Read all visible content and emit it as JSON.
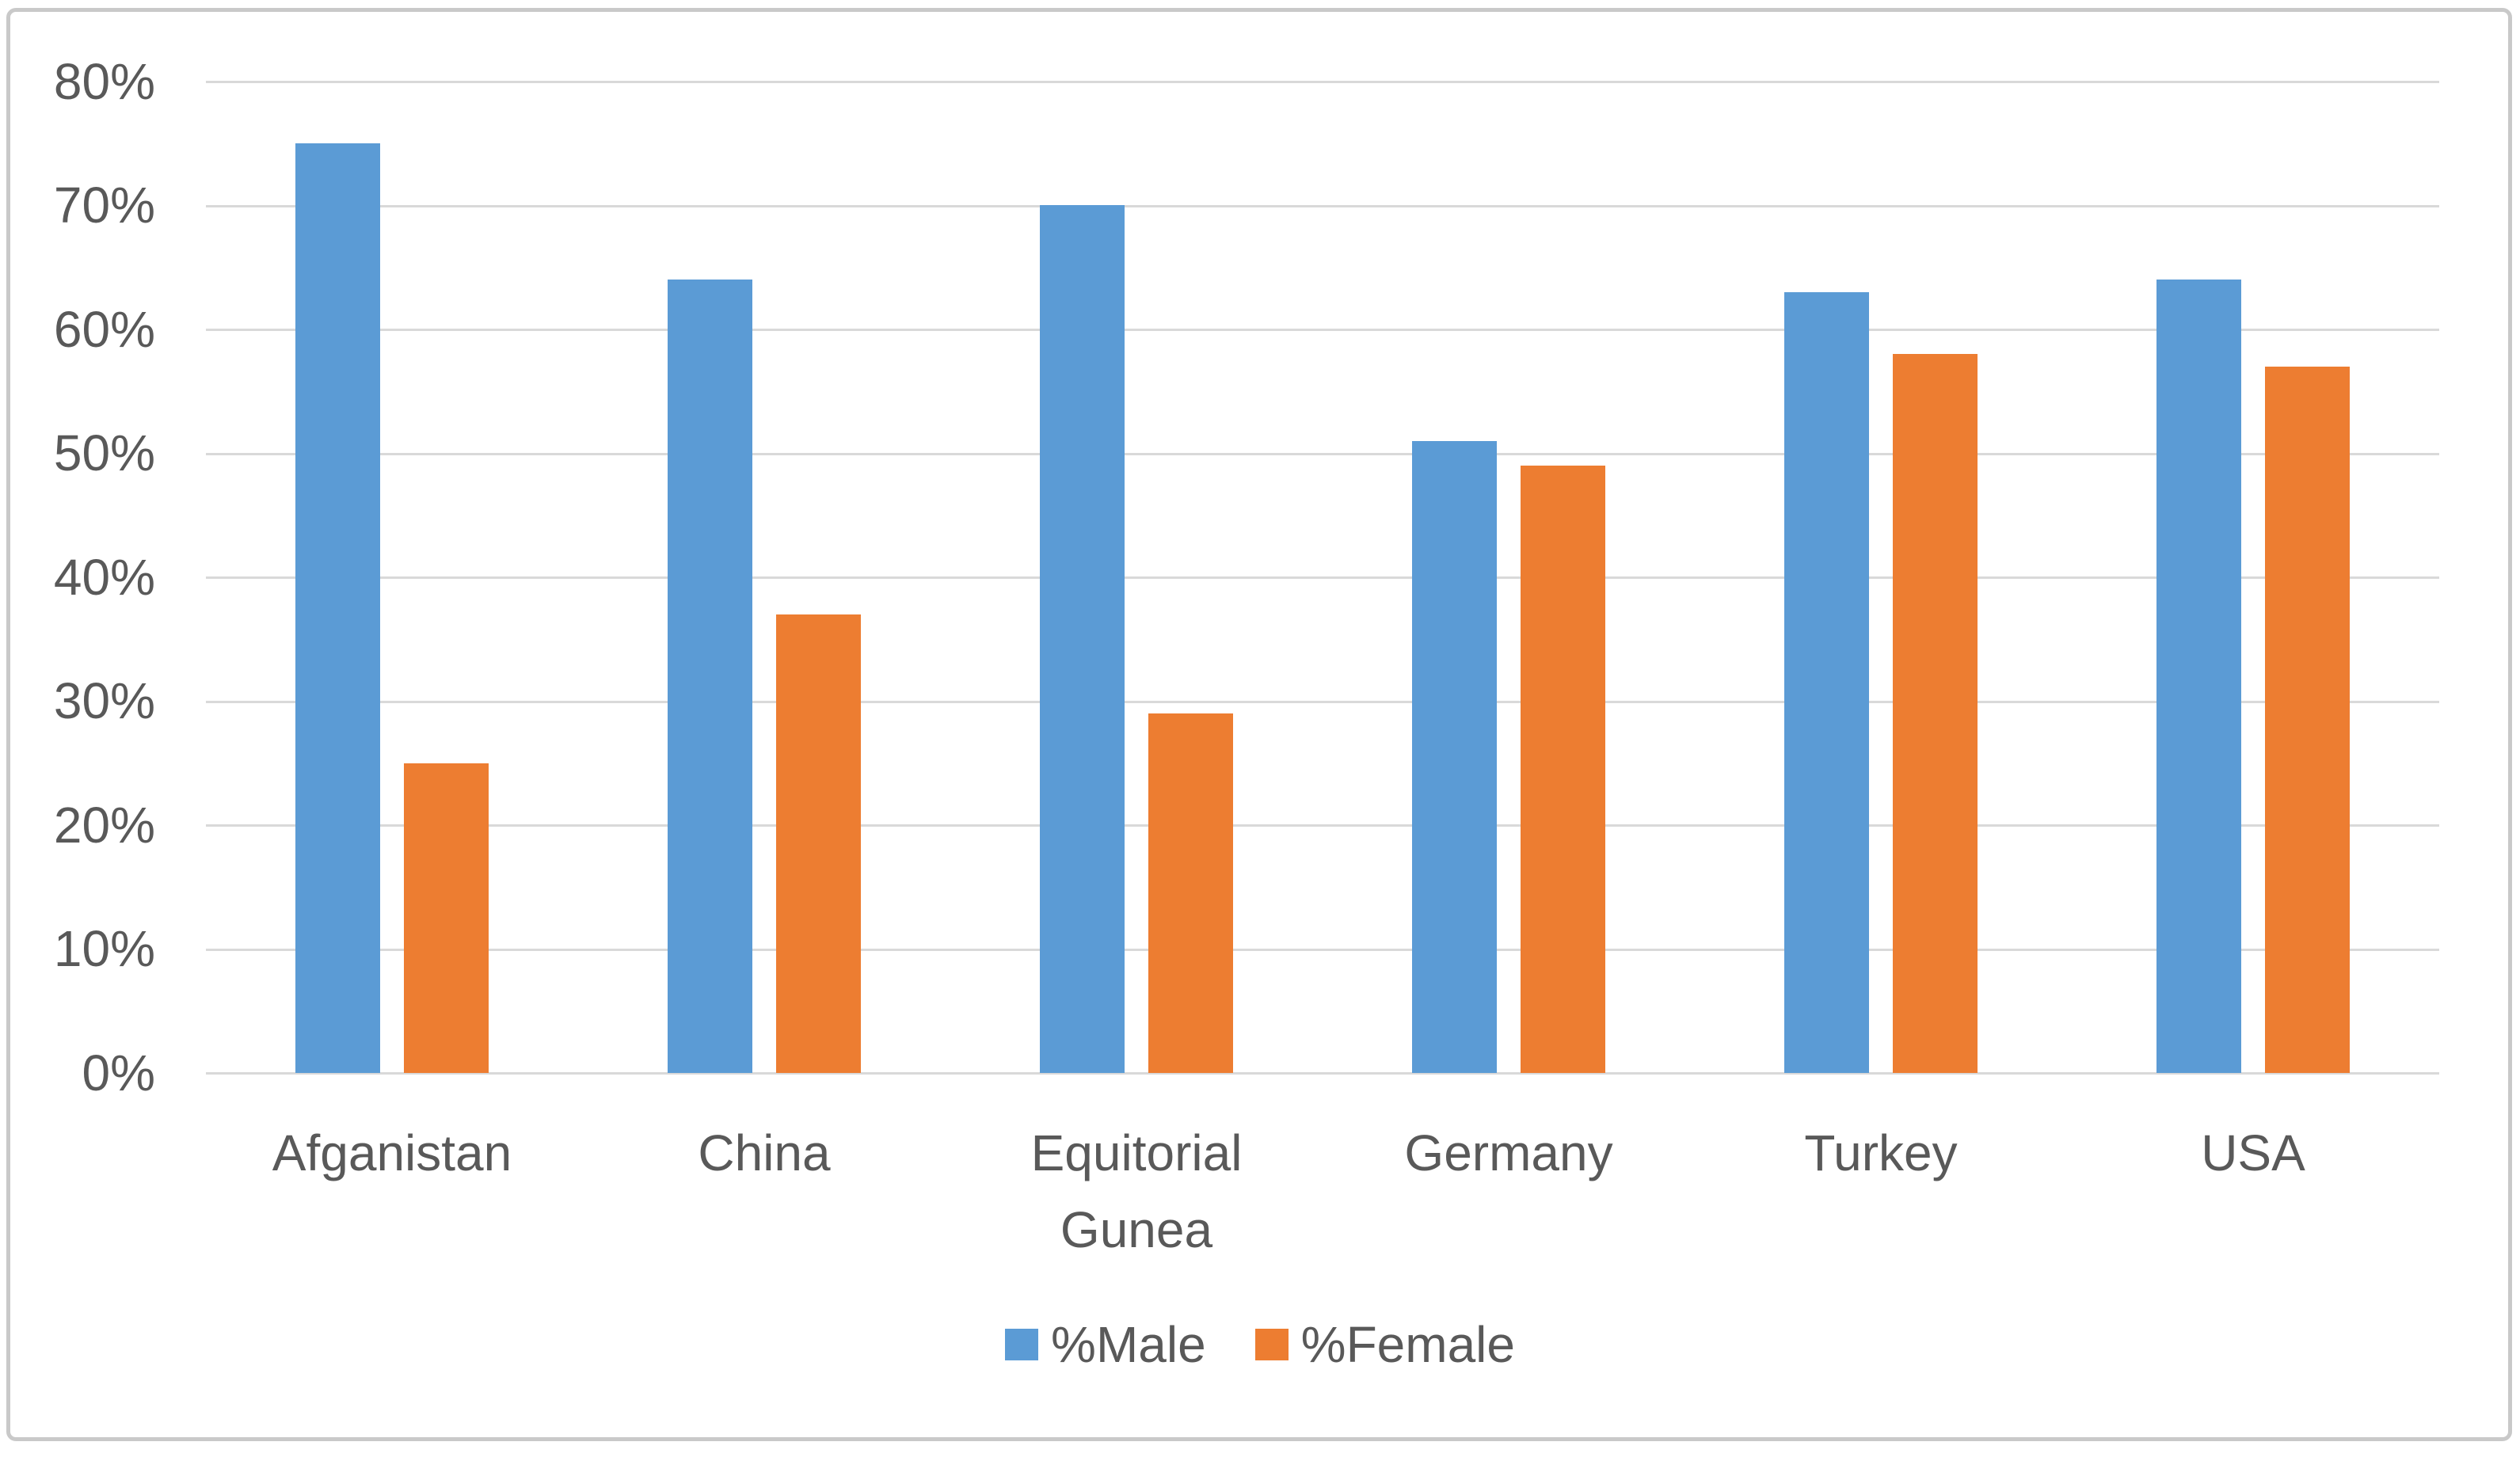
{
  "chart_data": {
    "type": "bar",
    "categories": [
      "Afganistan",
      "China",
      "Equitorial Gunea",
      "Germany",
      "Turkey",
      "USA"
    ],
    "series": [
      {
        "name": "%Male",
        "color": "#5B9BD5",
        "values": [
          75,
          64,
          70,
          51,
          63,
          64
        ]
      },
      {
        "name": "%Female",
        "color": "#ED7D31",
        "values": [
          25,
          37,
          29,
          49,
          58,
          57
        ]
      }
    ],
    "title": "",
    "xlabel": "",
    "ylabel": "",
    "ylim": [
      0,
      80
    ],
    "ytick_step": 10,
    "ytick_labels": [
      "0%",
      "10%",
      "20%",
      "30%",
      "40%",
      "50%",
      "60%",
      "70%",
      "80%"
    ],
    "grid": true,
    "legend_position": "bottom"
  },
  "colors": {
    "gridline": "#D9D9D9",
    "axis_line": "#D9D9D9",
    "text": "#595959",
    "frame_border": "#C9C9C9",
    "background": "#FFFFFF"
  }
}
